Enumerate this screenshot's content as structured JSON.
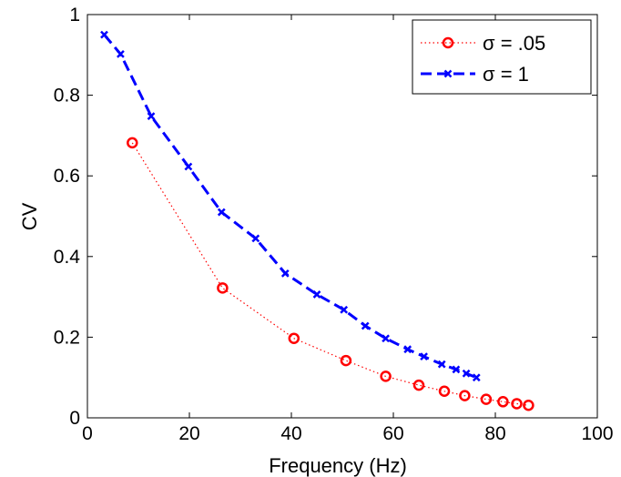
{
  "chart_data": {
    "type": "line",
    "title": "",
    "xlabel": "Frequency (Hz)",
    "ylabel": "CV",
    "xlim": [
      0,
      100
    ],
    "ylim": [
      0,
      1
    ],
    "xticks": [
      0,
      20,
      40,
      60,
      80,
      100
    ],
    "yticks": [
      0,
      0.2,
      0.4,
      0.6,
      0.8,
      1
    ],
    "xtick_labels": [
      "0",
      "20",
      "40",
      "60",
      "80",
      "100"
    ],
    "ytick_labels": [
      "0",
      "0.2",
      "0.4",
      "0.6",
      "0.8",
      "1"
    ],
    "grid": false,
    "legend_position": "top-right",
    "series": [
      {
        "name": "σ = .05",
        "color": "#ff0000",
        "line_style": "dotted",
        "marker": "circle",
        "x": [
          8.8,
          26.5,
          40.5,
          50.7,
          58.5,
          65.0,
          70.0,
          74.0,
          78.2,
          81.5,
          84.2,
          86.5
        ],
        "y": [
          0.682,
          0.322,
          0.197,
          0.142,
          0.103,
          0.081,
          0.066,
          0.055,
          0.046,
          0.04,
          0.035,
          0.031
        ]
      },
      {
        "name": "σ = 1",
        "color": "#0000ff",
        "line_style": "dashed",
        "marker": "x",
        "x": [
          3.3,
          6.5,
          12.5,
          19.8,
          26.3,
          33.0,
          38.8,
          45.0,
          50.3,
          54.5,
          58.5,
          62.8,
          66.0,
          69.5,
          72.3,
          74.3,
          76.3
        ],
        "y": [
          0.95,
          0.902,
          0.748,
          0.623,
          0.51,
          0.445,
          0.358,
          0.306,
          0.268,
          0.228,
          0.197,
          0.17,
          0.152,
          0.133,
          0.12,
          0.11,
          0.1
        ]
      }
    ]
  }
}
